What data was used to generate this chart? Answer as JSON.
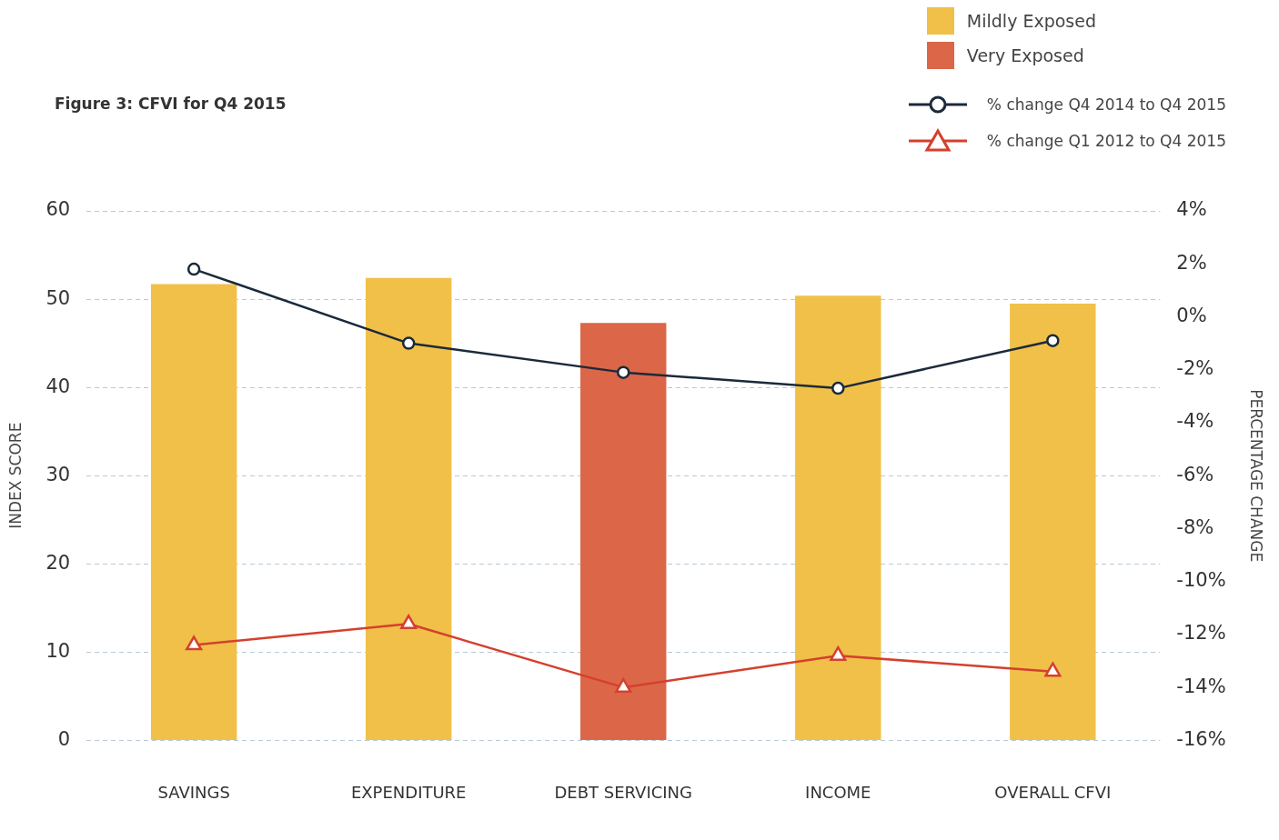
{
  "chart_data": {
    "type": "bar",
    "title": "Figure 3: CFVI for Q4 2015",
    "ylabel": "INDEX SCORE",
    "y2label": "PERCENTAGE CHANGE",
    "categories": [
      "SAVINGS",
      "EXPENDITURE",
      "DEBT SERVICING",
      "INCOME",
      "OVERALL CFVI"
    ],
    "series": [
      {
        "name": "Mildly Exposed",
        "color": "#f0c048",
        "values": [
          51.7,
          52.4,
          null,
          50.4,
          49.5
        ]
      },
      {
        "name": "Very Exposed",
        "color": "#dc6648",
        "values": [
          null,
          null,
          47.3,
          null,
          null
        ]
      },
      {
        "name": "% change Q4 2014 to Q4 2015",
        "type": "line",
        "axis": "y2",
        "marker": "circle",
        "color": "#1b2a3a",
        "values": [
          1.8,
          -1.0,
          -2.1,
          -2.7,
          -0.9
        ]
      },
      {
        "name": "% change Q1 2012 to Q4 2015",
        "type": "line",
        "axis": "y2",
        "marker": "triangle",
        "color": "#d4402e",
        "values": [
          -12.4,
          -11.6,
          -14.0,
          -12.8,
          -13.4
        ]
      }
    ],
    "ylim": [
      0,
      60
    ],
    "yticks": [
      0,
      10,
      20,
      30,
      40,
      50,
      60
    ],
    "y2lim": [
      -16,
      4
    ],
    "y2ticks": [
      {
        "value": -16,
        "label": "-16%"
      },
      {
        "value": -14,
        "label": "-14%"
      },
      {
        "value": -12,
        "label": "-12%"
      },
      {
        "value": -10,
        "label": "-10%"
      },
      {
        "value": -8,
        "label": "-8%"
      },
      {
        "value": -6,
        "label": "-6%"
      },
      {
        "value": -4,
        "label": "-4%"
      },
      {
        "value": -2,
        "label": "-2%"
      },
      {
        "value": 0,
        "label": "0%"
      },
      {
        "value": 2,
        "label": "2%"
      },
      {
        "value": 4,
        "label": "4%"
      }
    ],
    "grid": "y",
    "legend": "top right"
  }
}
